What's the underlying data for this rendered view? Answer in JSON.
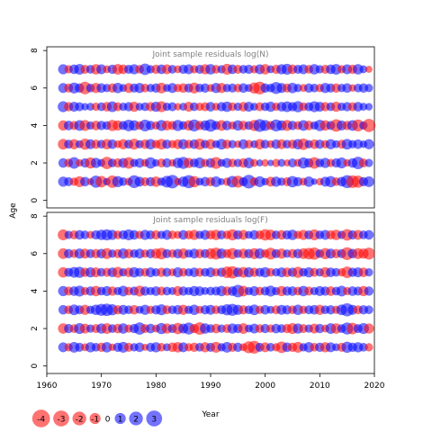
{
  "chart_data": {
    "type": "scatter",
    "subtype": "bubble-residuals",
    "ylabel": "Age",
    "xlabel": "Year",
    "xlim": [
      1960,
      2020
    ],
    "x_ticks": [
      "1960",
      "1970",
      "1980",
      "1990",
      "2000",
      "2010",
      "2020"
    ],
    "positive_color": "#0000ff",
    "negative_color": "#ff0000",
    "year_start": 1963,
    "year_end": 2019,
    "panels": [
      {
        "title": "Joint sample residuals log(N)",
        "ylim": [
          -0.4,
          8.2
        ],
        "y_ticks": [
          "0",
          "2",
          "4",
          "6",
          "8"
        ],
        "ages": [
          1,
          2,
          3,
          4,
          5,
          6,
          7
        ],
        "residuals": {
          "1": [
            1.2,
            0.8,
            -0.6,
            -1.5,
            1.0,
            -0.3,
            2.1,
            -1.8,
            0.4,
            -2.2,
            1.6,
            0.7,
            -0.5,
            2.4,
            1.1,
            -0.8,
            0.9,
            -1.3,
            0.6,
            1.9,
            2.8,
            -0.4,
            1.3,
            2.6,
            -1.7,
            0.5,
            1.0,
            -0.9,
            1.4,
            0.3,
            -0.6,
            1.8,
            -2.0,
            0.8,
            2.9,
            -0.7,
            1.5,
            0.4,
            -1.1,
            1.2,
            0.6,
            -0.8,
            1.7,
            0.9,
            -0.5,
            1.3,
            0.2,
            -0.4,
            1.1,
            1.6,
            -0.7,
            1.0,
            2.5,
            -2.3,
            -2.1,
            0.9,
            1.4
          ],
          "2": [
            1.0,
            -0.7,
            1.8,
            -0.4,
            0.9,
            -1.6,
            1.2,
            0.5,
            -2.1,
            0.7,
            -0.9,
            1.1,
            -1.8,
            0.6,
            1.0,
            -0.5,
            1.7,
            0.4,
            -0.8,
            0.9,
            -0.4,
            1.3,
            2.0,
            -1.2,
            0.8,
            1.5,
            -0.6,
            1.0,
            -1.9,
            0.5,
            1.1,
            -0.7,
            0.6,
            -1.0,
            1.4,
            -0.5,
            0.3,
            -0.4,
            0.2,
            -0.6,
            0.5,
            -0.3,
            0.8,
            -0.5,
            1.6,
            0.9,
            -1.8,
            0.7,
            1.2,
            -0.6,
            0.9,
            1.5,
            -0.4,
            1.0,
            2.2,
            -0.8,
            0.6
          ],
          "3": [
            -1.4,
            0.8,
            -1.2,
            0.5,
            -1.6,
            1.1,
            -0.9,
            0.7,
            -1.3,
            1.0,
            -0.5,
            -1.2,
            0.8,
            -1.5,
            0.6,
            -1.0,
            1.3,
            -0.7,
            -1.4,
            0.9,
            -0.6,
            -1.1,
            1.2,
            -0.8,
            1.0,
            -1.6,
            0.7,
            -1.2,
            0.5,
            1.4,
            -0.9,
            0.6,
            -0.4,
            1.1,
            -0.7,
            0.5,
            -1.3,
            0.8,
            -0.5,
            1.0,
            -1.1,
            0.7,
            -0.9,
            1.3,
            -1.8,
            0.6,
            -1.0,
            0.9,
            -0.6,
            1.2,
            0.5,
            -0.8,
            1.4,
            0.6,
            1.0,
            0.4,
            1.2
          ],
          "4": [
            -1.2,
            1.0,
            -0.8,
            1.4,
            -1.5,
            0.6,
            -1.0,
            0.9,
            0.7,
            -1.6,
            -1.2,
            0.8,
            1.8,
            1.3,
            -0.7,
            1.9,
            0.9,
            -0.6,
            1.5,
            -1.1,
            -0.8,
            1.6,
            0.7,
            -1.3,
            2.0,
            -0.9,
            1.2,
            2.2,
            0.8,
            -1.4,
            1.0,
            -0.6,
            1.3,
            -1.0,
            0.7,
            -1.6,
            2.4,
            1.5,
            -0.8,
            2.0,
            1.2,
            -1.5,
            0.9,
            -0.7,
            1.4,
            -1.0,
            0.6,
            1.7,
            -1.3,
            0.8,
            -2.2,
            1.1,
            -0.9,
            1.4,
            -2.0,
            0.6,
            -2.6
          ],
          "5": [
            1.5,
            -0.9,
            1.1,
            0.8,
            0.4,
            0.5,
            -0.6,
            0.7,
            -1.0,
            1.4,
            -0.8,
            0.6,
            0.9,
            -1.2,
            0.5,
            0.7,
            -0.9,
            1.2,
            -1.5,
            0.6,
            0.8,
            -0.4,
            0.5,
            -1.1,
            0.7,
            -0.6,
            -0.8,
            1.0,
            -0.5,
            0.9,
            1.3,
            -0.7,
            0.6,
            -1.0,
            1.1,
            0.5,
            -0.8,
            0.7,
            1.2,
            -0.6,
            1.0,
            1.4,
            0.9,
            1.6,
            -0.7,
            0.8,
            1.5,
            1.1,
            -0.9,
            0.7,
            -1.2,
            0.6,
            0.9,
            -0.8,
            1.0,
            0.5,
            0.4
          ],
          "6": [
            1.1,
            -0.8,
            1.5,
            0.9,
            -2.3,
            0.7,
            -1.2,
            1.0,
            0.6,
            -0.9,
            1.3,
            0.5,
            -1.1,
            0.8,
            1.2,
            -0.7,
            0.6,
            0.9,
            -1.4,
            0.5,
            1.1,
            -0.6,
            -1.0,
            0.8,
            -1.5,
            0.7,
            0.9,
            -0.5,
            1.2,
            -1.2,
            0.6,
            0.8,
            -0.7,
            1.0,
            0.5,
            -1.6,
            -2.4,
            0.9,
            0.7,
            2.0,
            1.1,
            -0.8,
            1.3,
            0.6,
            -0.5,
            0.9,
            0.7,
            -0.6,
            1.2,
            0.8,
            -0.9,
            0.6,
            1.0,
            -0.4,
            0.7,
            0.9,
            0.6
          ],
          "7": [
            1.2,
            -0.6,
            1.0,
            1.4,
            -0.8,
            0.7,
            -1.3,
            1.1,
            -0.5,
            0.9,
            -1.4,
            -1.0,
            0.8,
            1.2,
            -0.7,
            1.8,
            0.6,
            -0.9,
            1.0,
            -1.1,
            0.7,
            -0.5,
            0.9,
            1.1,
            -0.6,
            0.8,
            -1.2,
            1.3,
            -0.7,
            0.6,
            -1.5,
            1.0,
            -0.8,
            0.7,
            0.9,
            -0.6,
            1.1,
            -1.3,
            0.5,
            -0.9,
            1.2,
            1.5,
            -1.0,
            0.8,
            1.1,
            -0.7,
            1.3,
            0.6,
            -0.8,
            1.0,
            1.4,
            -0.6,
            1.1,
            -0.9,
            1.3,
            0.5,
            -0.3
          ]
        }
      },
      {
        "title": "Joint sample residuals log(F)",
        "ylim": [
          -0.4,
          8.2
        ],
        "y_ticks": [
          "0",
          "2",
          "4",
          "6",
          "8"
        ],
        "ages": [
          1,
          2,
          3,
          4,
          5,
          6,
          7
        ],
        "residuals": {
          "1": [
            1.1,
            -0.6,
            1.4,
            0.8,
            -0.5,
            1.2,
            0.7,
            -0.9,
            1.3,
            -0.4,
            0.9,
            1.5,
            -0.8,
            0.6,
            1.0,
            -0.3,
            0.8,
            1.2,
            -0.7,
            0.5,
            -1.0,
            -1.3,
            1.1,
            -0.6,
            -0.9,
            0.7,
            -1.2,
            0.8,
            -1.5,
            0.6,
            1.4,
            -0.8,
            0.9,
            -0.5,
            -2.0,
            -2.4,
            0.8,
            -1.1,
            0.7,
            -0.6,
            -1.8,
            1.0,
            -0.9,
            -1.5,
            0.6,
            1.3,
            -0.7,
            0.9,
            -1.2,
            1.1,
            0.5,
            -0.8,
            1.6,
            0.9,
            1.2,
            0.7,
            -0.6
          ],
          "2": [
            -1.3,
            0.9,
            -0.7,
            1.5,
            -1.1,
            0.6,
            -0.8,
            1.2,
            -1.4,
            0.7,
            -1.0,
            1.3,
            -0.6,
            0.9,
            2.1,
            -0.8,
            1.0,
            -0.5,
            1.6,
            -1.2,
            0.8,
            -1.7,
            1.1,
            2.0,
            -0.9,
            -2.2,
            1.3,
            0.7,
            -1.0,
            0.6,
            -0.8,
            1.2,
            0.9,
            -1.4,
            0.5,
            1.1,
            -0.7,
            0.9,
            -0.6,
            1.0,
            0.7,
            -0.9,
            -1.5,
            1.2,
            -0.8,
            0.6,
            -1.1,
            0.9,
            -0.5,
            1.4,
            -1.3,
            0.7,
            2.0,
            -1.8,
            0.8,
            1.5,
            -1.2
          ],
          "3": [
            1.0,
            -0.7,
            1.4,
            0.8,
            -1.2,
            0.6,
            1.3,
            2.0,
            2.2,
            1.6,
            -0.9,
            1.1,
            0.7,
            -1.0,
            0.5,
            1.2,
            -0.6,
            0.9,
            1.5,
            -0.8,
            0.7,
            1.0,
            -1.2,
            0.6,
            1.3,
            -0.5,
            0.9,
            1.1,
            -0.7,
            0.8,
            1.6,
            2.0,
            1.2,
            -0.9,
            0.7,
            1.4,
            -0.6,
            1.0,
            0.5,
            -0.8,
            1.1,
            0.9,
            -0.7,
            1.3,
            -0.6,
            0.8,
            1.0,
            -1.2,
            0.7,
            0.9,
            -0.6,
            1.4,
            2.6,
            1.1,
            -0.8,
            0.9,
            0.7
          ],
          "4": [
            1.2,
            -0.8,
            1.0,
            1.5,
            -0.6,
            0.9,
            -1.3,
            0.7,
            1.1,
            -0.9,
            0.6,
            1.4,
            -0.7,
            0.8,
            -1.5,
            0.9,
            0.6,
            1.0,
            -0.8,
            0.7,
            0.5,
            -1.1,
            0.9,
            0.6,
            1.2,
            1.0,
            0.5,
            0.7,
            0.8,
            1.3,
            -0.9,
            1.0,
            2.3,
            -1.4,
            0.6,
            1.1,
            -0.7,
            0.8,
            1.5,
            0.6,
            -1.2,
            0.9,
            1.0,
            -0.7,
            1.3,
            -0.8,
            0.6,
            1.1,
            0.9,
            -1.0,
            0.7,
            1.4,
            -0.6,
            1.0,
            0.8,
            -1.2,
            0.9
          ],
          "5": [
            -1.3,
            0.8,
            1.4,
            1.6,
            -0.9,
            1.2,
            -1.1,
            0.7,
            -0.8,
            1.0,
            -1.5,
            0.6,
            -1.0,
            1.3,
            0.8,
            -0.7,
            1.1,
            0.6,
            -0.9,
            0.8,
            -0.5,
            1.2,
            -0.7,
            0.6,
            1.0,
            -0.8,
            0.7,
            1.1,
            -0.6,
            0.9,
            -1.8,
            -2.2,
            1.0,
            -1.4,
            1.2,
            -0.9,
            0.8,
            1.3,
            -0.7,
            0.6,
            1.1,
            -1.0,
            0.9,
            -1.6,
            0.7,
            1.2,
            -0.8,
            0.6,
            -1.3,
            1.0,
            0.7,
            -0.6,
            -1.8,
            0.9,
            1.1,
            -1.0,
            0.6
          ],
          "6": [
            -1.4,
            0.9,
            -0.7,
            1.2,
            -1.1,
            0.8,
            -0.9,
            1.0,
            -1.5,
            0.6,
            -0.8,
            1.3,
            -1.0,
            0.7,
            1.1,
            -0.6,
            0.9,
            -1.2,
            -1.8,
            0.8,
            -0.7,
            1.0,
            -1.3,
            0.6,
            1.1,
            -0.9,
            0.8,
            -1.4,
            -2.0,
            1.2,
            -0.8,
            -1.6,
            0.7,
            -1.1,
            0.9,
            -1.5,
            1.3,
            -0.7,
            -1.9,
            0.8,
            -1.2,
            0.6,
            -0.9,
            1.0,
            -1.4,
            -1.8,
            -2.1,
            0.7,
            -1.6,
            1.1,
            -0.9,
            0.8,
            -2.4,
            1.0,
            -1.5,
            -1.2,
            -2.0
          ],
          "7": [
            -1.5,
            0.6,
            -0.8,
            1.0,
            0.7,
            -0.5,
            0.9,
            1.3,
            1.6,
            1.2,
            -0.7,
            0.9,
            1.5,
            1.0,
            -0.6,
            1.2,
            0.8,
            -0.9,
            0.6,
            1.1,
            -0.7,
            -0.5,
            1.0,
            -0.8,
            -1.2,
            0.6,
            1.1,
            -0.9,
            -1.3,
            0.8,
            -0.7,
            -1.6,
            0.9,
            -1.1,
            0.5,
            1.0,
            -0.8,
            -1.7,
            -1.4,
            0.7,
            -1.0,
            0.9,
            1.3,
            -0.6,
            -1.2,
            0.8,
            -1.5,
            0.7,
            1.1,
            -0.9,
            -1.3,
            0.6,
            -1.8,
            0.9,
            -1.1,
            0.7,
            1.0
          ]
        }
      }
    ],
    "legend": {
      "placement": "bottom-left",
      "entries": [
        {
          "label": "-4",
          "value": -4
        },
        {
          "label": "-3",
          "value": -3
        },
        {
          "label": "-2",
          "value": -2
        },
        {
          "label": "-1",
          "value": -1
        },
        {
          "label": "0",
          "value": 0
        },
        {
          "label": "1",
          "value": 1
        },
        {
          "label": "2",
          "value": 2
        },
        {
          "label": "3",
          "value": 3
        }
      ]
    }
  }
}
